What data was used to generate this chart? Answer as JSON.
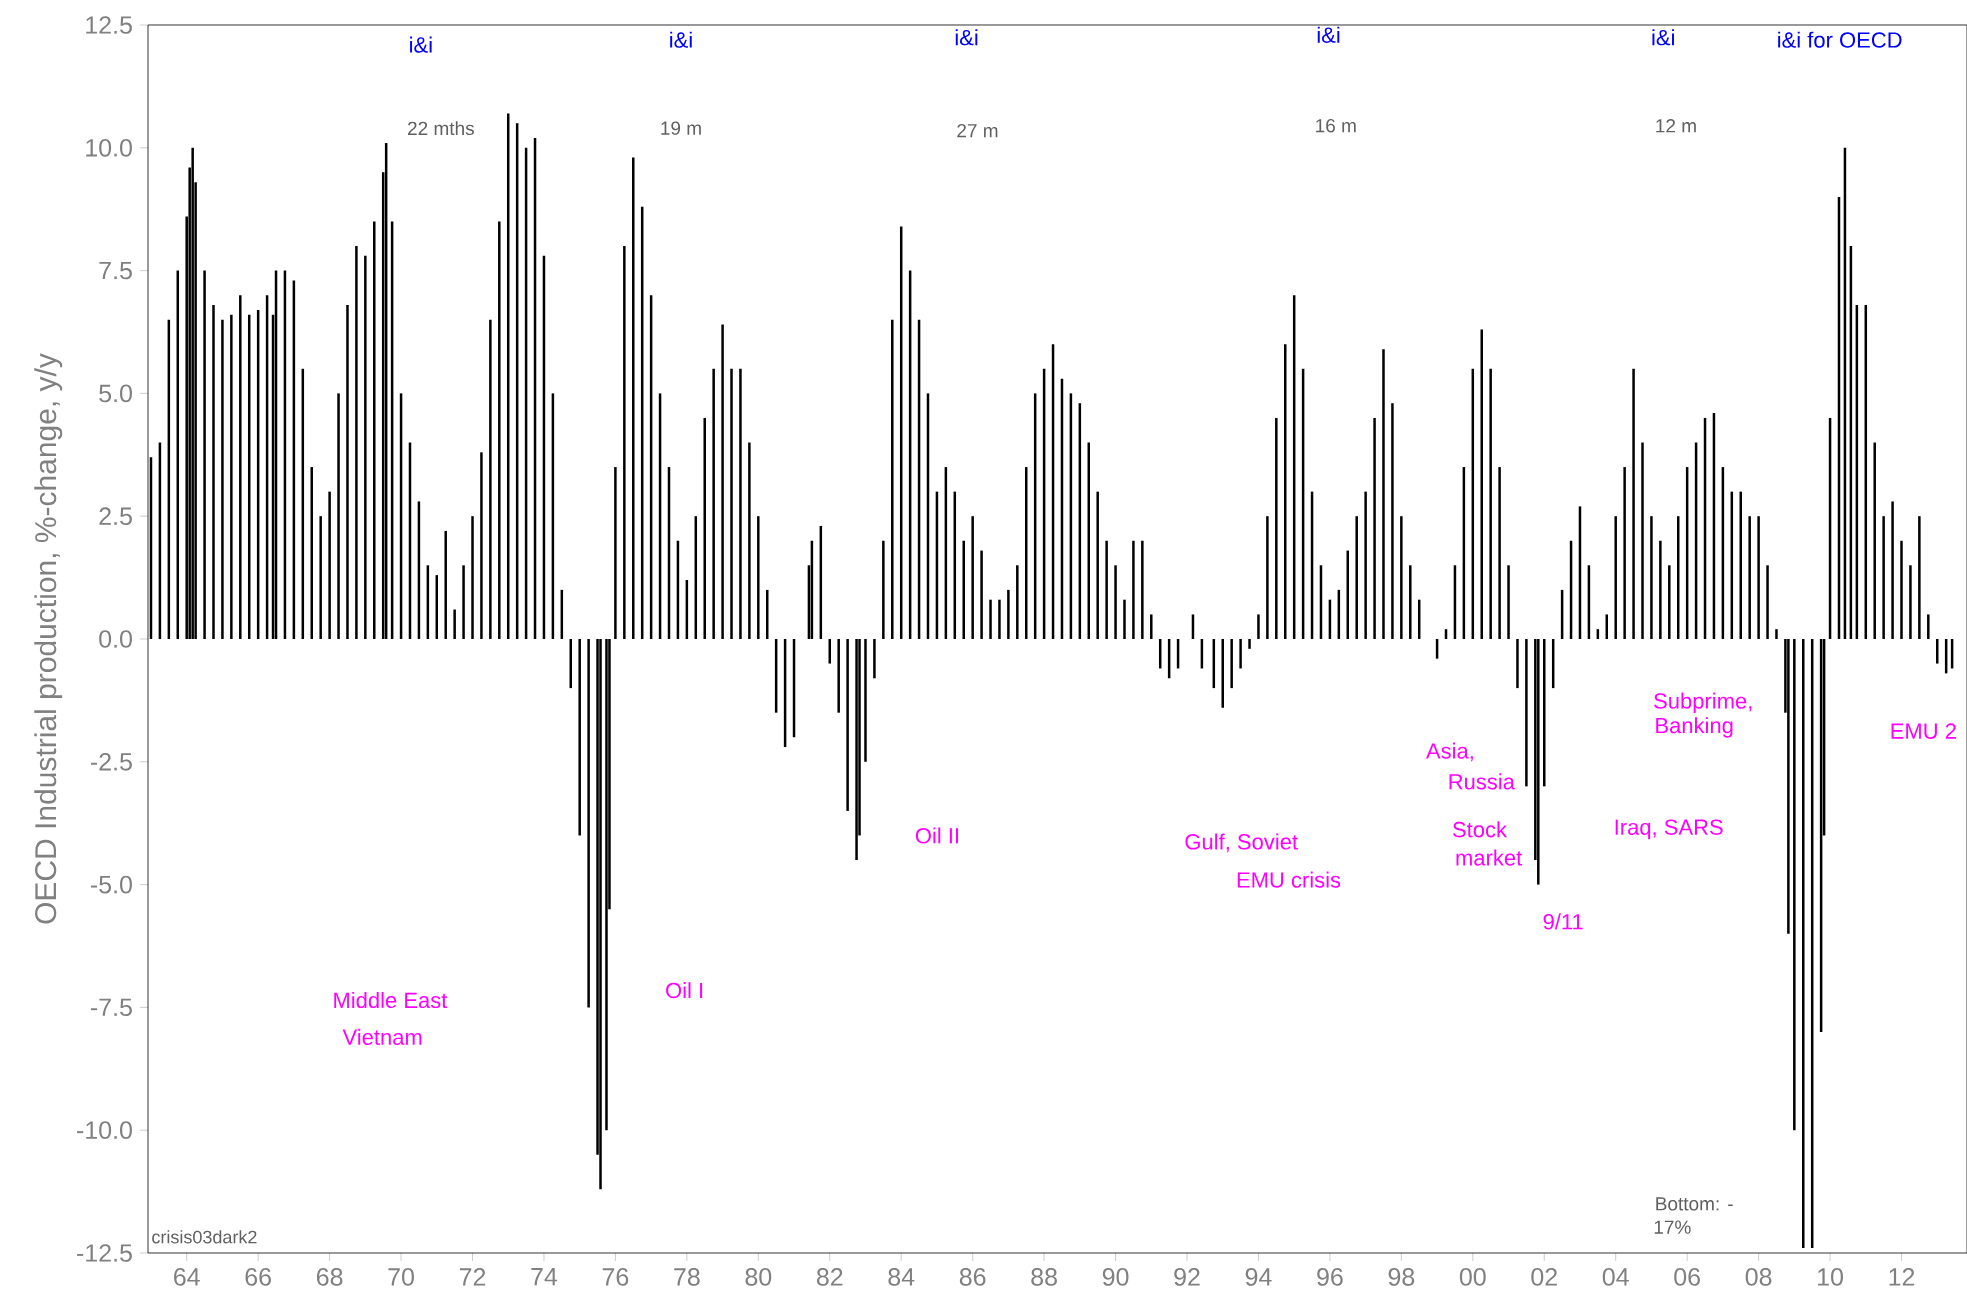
{
  "chart_data": {
    "type": "bar",
    "ylabel": "OECD Industrial production, %-change, y/y",
    "color": "#000000",
    "x": [
      "1963-01",
      "1963-04",
      "1963-07",
      "1963-10",
      "1964-01",
      "1964-02",
      "1964-03",
      "1964-04",
      "1964-07",
      "1964-10",
      "1965-01",
      "1965-04",
      "1965-07",
      "1965-10",
      "1966-01",
      "1966-04",
      "1966-06",
      "1966-07",
      "1966-10",
      "1967-01",
      "1967-04",
      "1967-07",
      "1967-10",
      "1968-01",
      "1968-04",
      "1968-07",
      "1968-10",
      "1969-01",
      "1969-04",
      "1969-07",
      "1969-08",
      "1969-10",
      "1970-01",
      "1970-04",
      "1970-07",
      "1970-10",
      "1971-01",
      "1971-04",
      "1971-07",
      "1971-10",
      "1972-01",
      "1972-04",
      "1972-07",
      "1972-10",
      "1973-01",
      "1973-04",
      "1973-07",
      "1973-10",
      "1974-01",
      "1974-04",
      "1974-07",
      "1974-10",
      "1975-01",
      "1975-04",
      "1975-07",
      "1975-08",
      "1975-10",
      "1975-11",
      "1976-01",
      "1976-04",
      "1976-07",
      "1976-10",
      "1977-01",
      "1977-04",
      "1977-07",
      "1977-10",
      "1978-01",
      "1978-04",
      "1978-07",
      "1978-10",
      "1979-01",
      "1979-04",
      "1979-07",
      "1979-10",
      "1980-01",
      "1980-04",
      "1980-07",
      "1980-10",
      "1981-01",
      "1981-06",
      "1981-07",
      "1981-10",
      "1982-01",
      "1982-04",
      "1982-07",
      "1982-10",
      "1982-11",
      "1983-01",
      "1983-04",
      "1983-07",
      "1983-10",
      "1984-01",
      "1984-04",
      "1984-07",
      "1984-10",
      "1985-01",
      "1985-04",
      "1985-07",
      "1985-10",
      "1986-01",
      "1986-04",
      "1986-07",
      "1986-10",
      "1987-01",
      "1987-04",
      "1987-07",
      "1987-10",
      "1988-01",
      "1988-04",
      "1988-07",
      "1988-10",
      "1989-01",
      "1989-04",
      "1989-07",
      "1989-10",
      "1990-01",
      "1990-04",
      "1990-07",
      "1990-10",
      "1991-01",
      "1991-04",
      "1991-07",
      "1991-10",
      "1992-03",
      "1992-06",
      "1992-10",
      "1993-01",
      "1993-04",
      "1993-07",
      "1993-10",
      "1994-01",
      "1994-04",
      "1994-07",
      "1994-10",
      "1995-01",
      "1995-04",
      "1995-07",
      "1995-10",
      "1996-01",
      "1996-04",
      "1996-07",
      "1996-10",
      "1997-01",
      "1997-04",
      "1997-07",
      "1997-10",
      "1998-01",
      "1998-04",
      "1998-07",
      "1998-10",
      "1999-01",
      "1999-04",
      "1999-07",
      "1999-10",
      "2000-01",
      "2000-04",
      "2000-07",
      "2000-10",
      "2001-01",
      "2001-04",
      "2001-07",
      "2001-10",
      "2001-11",
      "2002-01",
      "2002-04",
      "2002-07",
      "2002-10",
      "2003-01",
      "2003-04",
      "2003-07",
      "2003-10",
      "2004-01",
      "2004-04",
      "2004-07",
      "2004-10",
      "2005-01",
      "2005-04",
      "2005-07",
      "2005-10",
      "2006-01",
      "2006-04",
      "2006-07",
      "2006-10",
      "2007-01",
      "2007-04",
      "2007-07",
      "2007-10",
      "2008-01",
      "2008-04",
      "2008-07",
      "2008-10",
      "2008-11",
      "2009-01",
      "2009-04",
      "2009-07",
      "2009-10",
      "2009-11",
      "2010-01",
      "2010-04",
      "2010-06",
      "2010-08",
      "2010-10",
      "2011-01",
      "2011-04",
      "2011-07",
      "2011-10",
      "2012-01",
      "2012-04",
      "2012-07",
      "2012-10",
      "2013-01",
      "2013-04",
      "2013-06"
    ],
    "values": [
      3.7,
      4.0,
      6.5,
      7.5,
      8.6,
      9.6,
      10.0,
      9.3,
      7.5,
      6.8,
      6.5,
      6.6,
      7.0,
      6.6,
      6.7,
      7.0,
      6.6,
      7.5,
      7.5,
      7.3,
      5.5,
      3.5,
      2.5,
      3.0,
      5.0,
      6.8,
      8.0,
      7.8,
      8.5,
      9.5,
      10.1,
      8.5,
      5.0,
      4.0,
      2.8,
      1.5,
      1.3,
      2.2,
      0.6,
      1.5,
      2.5,
      3.8,
      6.5,
      8.5,
      10.7,
      10.5,
      10.0,
      10.2,
      7.8,
      5.0,
      1.0,
      -1.0,
      -4.0,
      -7.5,
      -10.5,
      -11.2,
      -10.0,
      -5.5,
      3.5,
      8.0,
      9.8,
      8.8,
      7.0,
      5.0,
      3.5,
      2.0,
      1.2,
      2.5,
      4.5,
      5.5,
      6.4,
      5.5,
      5.5,
      4.0,
      2.5,
      1.0,
      -1.5,
      -2.2,
      -2.0,
      1.5,
      2.0,
      2.3,
      -0.5,
      -1.5,
      -3.5,
      -4.5,
      -4.0,
      -2.5,
      -0.8,
      2.0,
      6.5,
      8.4,
      7.5,
      6.5,
      5.0,
      3.0,
      3.5,
      3.0,
      2.0,
      2.5,
      1.8,
      0.8,
      0.8,
      1.0,
      1.5,
      3.5,
      5.0,
      5.5,
      6.0,
      5.3,
      5.0,
      4.8,
      4.0,
      3.0,
      2.0,
      1.5,
      0.8,
      2.0,
      2.0,
      0.5,
      -0.6,
      -0.8,
      -0.6,
      0.5,
      -0.6,
      -1.0,
      -1.4,
      -1.0,
      -0.6,
      -0.2,
      0.5,
      2.5,
      4.5,
      6.0,
      7.0,
      5.5,
      3.0,
      1.5,
      0.8,
      1.0,
      1.8,
      2.5,
      3.0,
      4.5,
      5.9,
      4.8,
      2.5,
      1.5,
      0.8,
      0.0,
      -0.4,
      0.2,
      1.5,
      3.5,
      5.5,
      6.3,
      5.5,
      3.5,
      1.5,
      -1.0,
      -3.0,
      -4.5,
      -5.0,
      -3.0,
      -1.0,
      1.0,
      2.0,
      2.7,
      1.5,
      0.2,
      0.5,
      2.5,
      3.5,
      5.5,
      4.0,
      2.5,
      2.0,
      1.5,
      2.5,
      3.5,
      4.0,
      4.5,
      4.6,
      3.5,
      3.0,
      3.0,
      2.5,
      2.5,
      1.5,
      0.2,
      -1.5,
      -6.0,
      -10.0,
      -12.4,
      -12.4,
      -8.0,
      -4.0,
      4.5,
      9.0,
      10.0,
      8.0,
      6.8,
      6.8,
      4.0,
      2.5,
      2.8,
      2.0,
      1.5,
      2.5,
      0.5,
      -0.5,
      -0.7,
      -0.6
    ],
    "xlim": [
      "1962-12",
      "2013-11"
    ],
    "ylim": [
      -12.5,
      12.5
    ],
    "xticks": [
      {
        "value": "1964",
        "label": "64"
      },
      {
        "value": "1966",
        "label": "66"
      },
      {
        "value": "1968",
        "label": "68"
      },
      {
        "value": "1970",
        "label": "70"
      },
      {
        "value": "1972",
        "label": "72"
      },
      {
        "value": "1974",
        "label": "74"
      },
      {
        "value": "1976",
        "label": "76"
      },
      {
        "value": "1978",
        "label": "78"
      },
      {
        "value": "1980",
        "label": "80"
      },
      {
        "value": "1982",
        "label": "82"
      },
      {
        "value": "1984",
        "label": "84"
      },
      {
        "value": "1986",
        "label": "86"
      },
      {
        "value": "1988",
        "label": "88"
      },
      {
        "value": "1990",
        "label": "90"
      },
      {
        "value": "1992",
        "label": "92"
      },
      {
        "value": "1994",
        "label": "94"
      },
      {
        "value": "1996",
        "label": "96"
      },
      {
        "value": "1998",
        "label": "98"
      },
      {
        "value": "2000",
        "label": "00"
      },
      {
        "value": "2002",
        "label": "02"
      },
      {
        "value": "2004",
        "label": "04"
      },
      {
        "value": "2006",
        "label": "06"
      },
      {
        "value": "2008",
        "label": "08"
      },
      {
        "value": "2010",
        "label": "10"
      },
      {
        "value": "2012",
        "label": "12"
      }
    ],
    "yticks": [
      {
        "value": -12.5,
        "label": "-12.5"
      },
      {
        "value": -10,
        "label": "-10.0"
      },
      {
        "value": -7.5,
        "label": "-7.5"
      },
      {
        "value": -5,
        "label": "-5.0"
      },
      {
        "value": -2.5,
        "label": "-2.5"
      },
      {
        "value": 0,
        "label": "0.0"
      },
      {
        "value": 2.5,
        "label": "2.5"
      },
      {
        "value": 5,
        "label": "5.0"
      },
      {
        "value": 7.5,
        "label": "7.5"
      },
      {
        "value": 10,
        "label": "10.0"
      },
      {
        "value": 12.5,
        "label": "12.5"
      }
    ],
    "annotations": [
      "i&i",
      "i&i",
      "i&i",
      "i&i",
      "i&i",
      "i&i for OECD",
      "22 mths",
      "19 m",
      "27 m",
      "16 m",
      "12 m",
      "Bottom: -",
      "17%",
      "Middle East",
      "Vietnam",
      "Oil I",
      "Oil II",
      "Gulf, Soviet",
      "EMU crisis",
      "Asia,",
      "Russia",
      "Stock",
      "market",
      "9/11",
      "Iraq, SARS",
      "Subprime,",
      "Banking",
      "EMU 2",
      "crisis03dark2"
    ]
  }
}
